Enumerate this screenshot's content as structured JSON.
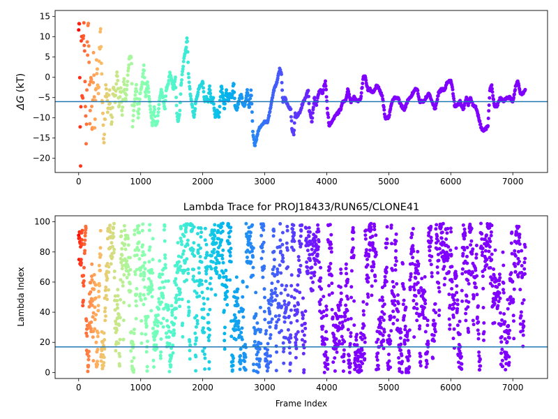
{
  "chart_data": [
    {
      "id": "dg",
      "type": "scatter",
      "title": "",
      "xlabel": "",
      "ylabel_main": "ΔG",
      "ylabel_unit": " (kT)",
      "xlim": [
        -380,
        7560
      ],
      "ylim": [
        -23.5,
        16.5
      ],
      "xticks": [
        0,
        1000,
        2000,
        3000,
        4000,
        5000,
        6000,
        7000
      ],
      "yticks": [
        -20,
        -15,
        -10,
        -5,
        0,
        5,
        10,
        15
      ],
      "hline": -6,
      "hline_color": "#1f77b4",
      "colormap": "rainbow (red at frame 0 → violet at late frames)",
      "segments": [
        [
          0,
          16
        ],
        [
          15,
          10
        ],
        [
          30,
          -22
        ],
        [
          45,
          12
        ],
        [
          60,
          -8
        ],
        [
          80,
          14
        ],
        [
          100,
          2
        ],
        [
          120,
          -18
        ],
        [
          140,
          8
        ],
        [
          160,
          12
        ],
        [
          180,
          -10
        ],
        [
          200,
          3
        ],
        [
          220,
          -14
        ],
        [
          240,
          6
        ],
        [
          260,
          -12
        ],
        [
          290,
          4
        ],
        [
          320,
          -2
        ],
        [
          350,
          12
        ],
        [
          380,
          -6
        ],
        [
          410,
          -16
        ],
        [
          440,
          -2
        ],
        [
          470,
          -8
        ],
        [
          500,
          -4
        ],
        [
          530,
          -12
        ],
        [
          560,
          -2
        ],
        [
          590,
          -6
        ],
        [
          620,
          2
        ],
        [
          650,
          -8
        ],
        [
          680,
          -2
        ],
        [
          700,
          -10
        ],
        [
          730,
          0
        ],
        [
          760,
          -6
        ],
        [
          790,
          0
        ],
        [
          820,
          5
        ],
        [
          850,
          5
        ],
        [
          870,
          -12
        ],
        [
          900,
          -6
        ],
        [
          930,
          -2
        ],
        [
          960,
          -10
        ],
        [
          990,
          -4
        ],
        [
          1020,
          -2
        ],
        [
          1050,
          3
        ],
        [
          1080,
          -5
        ],
        [
          1110,
          -1
        ],
        [
          1130,
          -4
        ],
        [
          1160,
          -8
        ],
        [
          1190,
          -12
        ],
        [
          1220,
          -7
        ],
        [
          1240,
          -12
        ],
        [
          1270,
          -11
        ],
        [
          1300,
          -6
        ],
        [
          1330,
          -3
        ],
        [
          1360,
          -5
        ],
        [
          1390,
          -8
        ],
        [
          1410,
          -3
        ],
        [
          1440,
          -2
        ],
        [
          1470,
          1
        ],
        [
          1500,
          -1
        ],
        [
          1530,
          -3
        ],
        [
          1560,
          0
        ],
        [
          1580,
          -8
        ],
        [
          1600,
          -11
        ],
        [
          1630,
          -9
        ],
        [
          1650,
          -2
        ],
        [
          1680,
          2
        ],
        [
          1700,
          5
        ],
        [
          1730,
          7
        ],
        [
          1750,
          10
        ],
        [
          1770,
          1
        ],
        [
          1800,
          -4
        ],
        [
          1830,
          -7
        ],
        [
          1860,
          -10
        ],
        [
          1890,
          -6
        ],
        [
          1920,
          -4
        ],
        [
          1950,
          -2
        ],
        [
          1980,
          -2
        ],
        [
          2000,
          -1
        ],
        [
          2030,
          -6
        ],
        [
          2060,
          -5
        ],
        [
          2090,
          -6
        ],
        [
          2110,
          -2
        ],
        [
          2140,
          -6
        ],
        [
          2170,
          -5
        ],
        [
          2200,
          -10
        ],
        [
          2230,
          -8
        ],
        [
          2260,
          -10
        ],
        [
          2300,
          -2
        ],
        [
          2320,
          -4
        ],
        [
          2350,
          -8
        ],
        [
          2380,
          -3
        ],
        [
          2410,
          -6
        ],
        [
          2440,
          -4
        ],
        [
          2470,
          -5
        ],
        [
          2500,
          -1
        ],
        [
          2520,
          -7
        ],
        [
          2550,
          -8
        ],
        [
          2580,
          -6
        ],
        [
          2620,
          -4
        ],
        [
          2650,
          -7
        ],
        [
          2680,
          -7
        ],
        [
          2720,
          -3
        ],
        [
          2750,
          -8
        ],
        [
          2780,
          -3
        ],
        [
          2810,
          -14
        ],
        [
          2840,
          -17
        ],
        [
          2870,
          -15
        ],
        [
          2900,
          -13
        ],
        [
          2940,
          -12
        ],
        [
          3000,
          -11
        ],
        [
          3050,
          -11
        ],
        [
          3100,
          -7
        ],
        [
          3150,
          -3
        ],
        [
          3200,
          -1
        ],
        [
          3240,
          2
        ],
        [
          3270,
          1
        ],
        [
          3290,
          -6
        ],
        [
          3320,
          -5
        ],
        [
          3350,
          -6
        ],
        [
          3380,
          -7
        ],
        [
          3420,
          -8
        ],
        [
          3440,
          -13
        ],
        [
          3470,
          -14
        ],
        [
          3490,
          -9
        ],
        [
          3520,
          -10
        ],
        [
          3550,
          -9
        ],
        [
          3580,
          -8
        ],
        [
          3620,
          -6
        ],
        [
          3660,
          -5
        ],
        [
          3700,
          -3
        ],
        [
          3720,
          -8
        ],
        [
          3760,
          -11
        ],
        [
          3800,
          -5
        ],
        [
          3830,
          -7
        ],
        [
          3870,
          -4
        ],
        [
          3900,
          -3
        ],
        [
          3930,
          -4
        ],
        [
          3960,
          -2
        ],
        [
          3980,
          -1
        ],
        [
          4010,
          -8
        ],
        [
          4040,
          -12
        ],
        [
          4080,
          -11
        ],
        [
          4120,
          -10
        ],
        [
          4170,
          -9
        ],
        [
          4220,
          -8
        ],
        [
          4260,
          -6
        ],
        [
          4300,
          -6
        ],
        [
          4340,
          -3
        ],
        [
          4390,
          -6
        ],
        [
          4440,
          -5
        ],
        [
          4500,
          -6
        ],
        [
          4550,
          -5
        ],
        [
          4590,
          0
        ],
        [
          4620,
          0
        ],
        [
          4660,
          -3
        ],
        [
          4700,
          -3
        ],
        [
          4740,
          -4
        ],
        [
          4780,
          -3
        ],
        [
          4800,
          -2
        ],
        [
          4850,
          -3
        ],
        [
          4900,
          -5
        ],
        [
          4940,
          -10
        ],
        [
          5000,
          -10
        ],
        [
          5050,
          -6
        ],
        [
          5100,
          -5
        ],
        [
          5150,
          -5
        ],
        [
          5200,
          -7
        ],
        [
          5250,
          -8
        ],
        [
          5300,
          -6
        ],
        [
          5350,
          -5
        ],
        [
          5420,
          -3
        ],
        [
          5460,
          -3
        ],
        [
          5500,
          -6
        ],
        [
          5560,
          -6
        ],
        [
          5600,
          -5
        ],
        [
          5650,
          -4
        ],
        [
          5700,
          -6
        ],
        [
          5750,
          -8
        ],
        [
          5800,
          -4
        ],
        [
          5850,
          -3
        ],
        [
          5900,
          -3
        ],
        [
          5950,
          -1
        ],
        [
          6000,
          -1
        ],
        [
          6030,
          -3
        ],
        [
          6060,
          -7
        ],
        [
          6100,
          -7
        ],
        [
          6150,
          -6
        ],
        [
          6200,
          -8
        ],
        [
          6250,
          -5
        ],
        [
          6280,
          -7
        ],
        [
          6320,
          -5
        ],
        [
          6360,
          -7
        ],
        [
          6400,
          -7
        ],
        [
          6450,
          -10
        ],
        [
          6500,
          -13
        ],
        [
          6550,
          -13
        ],
        [
          6600,
          -12
        ],
        [
          6630,
          -3
        ],
        [
          6660,
          -2
        ],
        [
          6700,
          -7
        ],
        [
          6750,
          -7
        ],
        [
          6800,
          -5
        ],
        [
          6850,
          -6
        ],
        [
          6900,
          -5
        ],
        [
          6950,
          -5
        ],
        [
          7000,
          -6
        ],
        [
          7050,
          -2
        ],
        [
          7080,
          -1
        ],
        [
          7120,
          -4
        ],
        [
          7160,
          -4
        ],
        [
          7200,
          -3
        ]
      ]
    },
    {
      "id": "lambda",
      "type": "scatter",
      "title": "Lambda Trace for PROJ18433/RUN65/CLONE41",
      "xlabel": "Frame Index",
      "ylabel": "Lambda Index",
      "xlim": [
        -380,
        7560
      ],
      "ylim": [
        -4,
        104
      ],
      "xticks": [
        0,
        1000,
        2000,
        3000,
        4000,
        5000,
        6000,
        7000
      ],
      "yticks": [
        0,
        20,
        40,
        60,
        80,
        100
      ],
      "hline": 17,
      "hline_color": "#1f77b4",
      "n_frames": 7200,
      "value_range": [
        0,
        99
      ],
      "colormap": "rainbow (red at frame 0 → violet at late frames)"
    }
  ],
  "x_tick_labels": [
    "0",
    "1000",
    "2000",
    "3000",
    "4000",
    "5000",
    "6000",
    "7000"
  ],
  "dg_y_tick_labels": [
    "−20",
    "−15",
    "−10",
    "−5",
    "0",
    "5",
    "10",
    "15"
  ],
  "lambda_y_tick_labels": [
    "0",
    "20",
    "40",
    "60",
    "80",
    "100"
  ]
}
